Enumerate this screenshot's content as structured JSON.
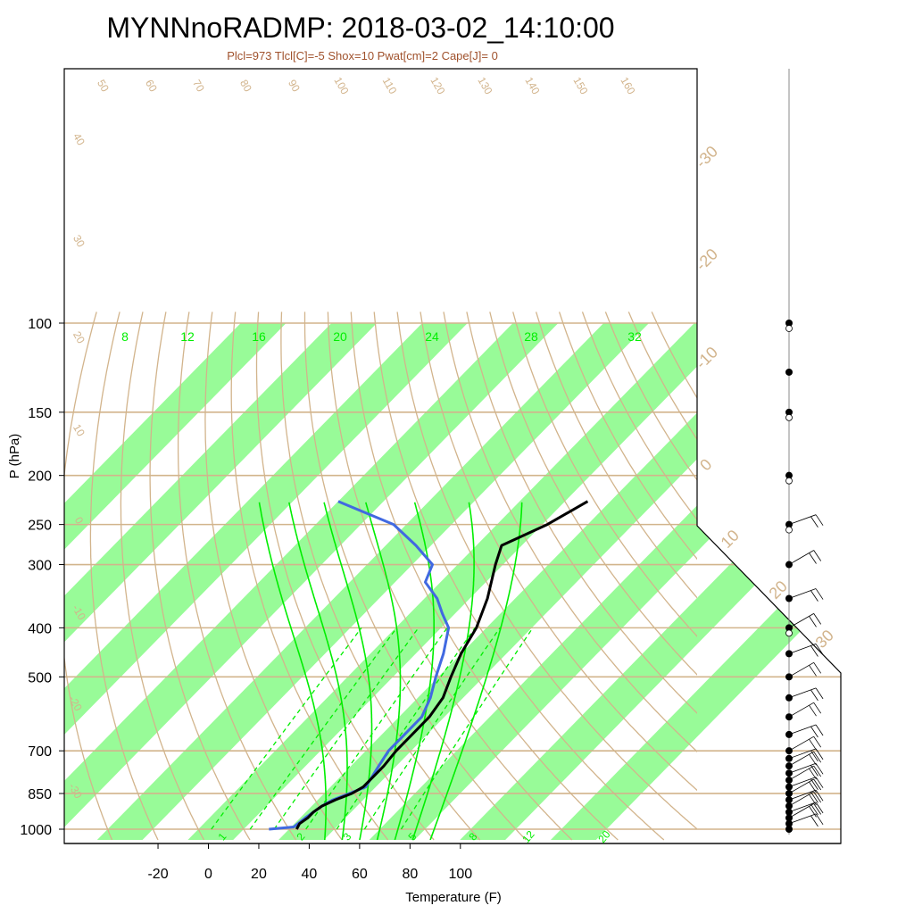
{
  "chart_data": {
    "type": "skew-t",
    "title": "MYNNnoRADMP: 2018-03-02_14:10:00",
    "subtitle": "Plcl=973 Tlcl[C]=-5 Shox=10 Pwat[cm]=2 Cape[J]= 0",
    "xlabel": "Temperature (F)",
    "ylabel": "P (hPa)",
    "x_ticks": [
      "-20",
      "0",
      "20",
      "40",
      "60",
      "80",
      "100"
    ],
    "y_ticks": [
      "100",
      "150",
      "200",
      "250",
      "300",
      "400",
      "500",
      "700",
      "850",
      "1000"
    ],
    "isotherm_labels_C": [
      "-30",
      "-20",
      "-10",
      "0",
      "10",
      "20",
      "30"
    ],
    "dry_adiabat_labels": [
      "50",
      "60",
      "70",
      "80",
      "90",
      "100",
      "110",
      "120",
      "130",
      "140",
      "150",
      "160",
      "40",
      "30",
      "20",
      "10",
      "0",
      "-10",
      "-20",
      "-30"
    ],
    "moist_adiabat_labels": [
      "8",
      "12",
      "16",
      "20",
      "24",
      "28",
      "32"
    ],
    "mixing_ratio_labels": [
      "1",
      "2",
      "3",
      "5",
      "8",
      "12",
      "20"
    ],
    "colors": {
      "temperature": "#000000",
      "dewpoint": "#4169e1",
      "isotherm_band": "#98fb98",
      "background_lines": "#d2b48c",
      "moist_adiabat": "#00ee00",
      "label_brown": "#a0522d",
      "mixing_ratio": "#00ee00"
    },
    "temperature_profile": [
      {
        "p": 1000,
        "t": 35
      },
      {
        "p": 975,
        "t": 34
      },
      {
        "p": 950,
        "t": 35
      },
      {
        "p": 925,
        "t": 35
      },
      {
        "p": 900,
        "t": 36
      },
      {
        "p": 875,
        "t": 39
      },
      {
        "p": 850,
        "t": 43
      },
      {
        "p": 825,
        "t": 45
      },
      {
        "p": 800,
        "t": 45
      },
      {
        "p": 750,
        "t": 45
      },
      {
        "p": 700,
        "t": 44
      },
      {
        "p": 650,
        "t": 44
      },
      {
        "p": 600,
        "t": 44
      },
      {
        "p": 550,
        "t": 42
      },
      {
        "p": 500,
        "t": 37
      },
      {
        "p": 450,
        "t": 32
      },
      {
        "p": 400,
        "t": 28
      },
      {
        "p": 350,
        "t": 21
      },
      {
        "p": 300,
        "t": 11
      },
      {
        "p": 275,
        "t": 6
      },
      {
        "p": 250,
        "t": 16
      },
      {
        "p": 225,
        "t": 23
      }
    ],
    "dewpoint_profile": [
      {
        "p": 1000,
        "t": 24
      },
      {
        "p": 990,
        "t": 33
      },
      {
        "p": 950,
        "t": 34
      },
      {
        "p": 900,
        "t": 36
      },
      {
        "p": 875,
        "t": 38
      },
      {
        "p": 850,
        "t": 42
      },
      {
        "p": 825,
        "t": 46
      },
      {
        "p": 800,
        "t": 45
      },
      {
        "p": 750,
        "t": 43
      },
      {
        "p": 700,
        "t": 41
      },
      {
        "p": 650,
        "t": 41
      },
      {
        "p": 600,
        "t": 41
      },
      {
        "p": 550,
        "t": 37
      },
      {
        "p": 500,
        "t": 31
      },
      {
        "p": 450,
        "t": 25
      },
      {
        "p": 400,
        "t": 17
      },
      {
        "p": 375,
        "t": 9
      },
      {
        "p": 350,
        "t": 1
      },
      {
        "p": 325,
        "t": -10
      },
      {
        "p": 300,
        "t": -14
      },
      {
        "p": 275,
        "t": -28
      },
      {
        "p": 250,
        "t": -45
      },
      {
        "p": 225,
        "t": -76
      }
    ],
    "wind_levels_hPa": [
      1000,
      975,
      950,
      925,
      900,
      875,
      850,
      825,
      800,
      775,
      750,
      725,
      700,
      650,
      600,
      550,
      500,
      450,
      400,
      350,
      300,
      250,
      200,
      150,
      125,
      100
    ],
    "wind_barb_levels_hPa": [
      975,
      950,
      925,
      900,
      875,
      850,
      825,
      800,
      775,
      750,
      725,
      700,
      650,
      600,
      550,
      500,
      450,
      400,
      350,
      300,
      250
    ]
  }
}
